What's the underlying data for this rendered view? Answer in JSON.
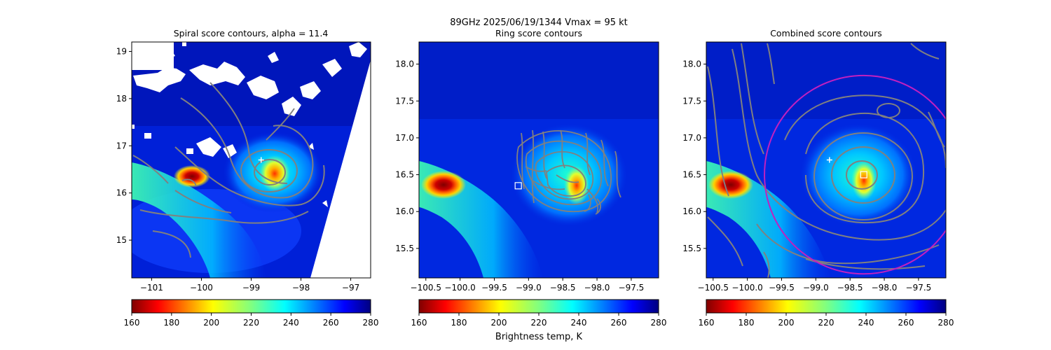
{
  "suptitle": "89GHz  2025/06/19/1344    Vmax = 95 kt",
  "colorbar_label": "Brightness temp, K",
  "colors": {
    "contour": "#808080",
    "circle": "#c020c0",
    "marker": "#ffffff"
  },
  "colormap": "jet_reversed",
  "chart_data": [
    {
      "type": "heatmap",
      "title": "Spiral score contours, alpha = 11.4",
      "xlim": [
        -101.4,
        -96.6
      ],
      "ylim": [
        14.2,
        19.2
      ],
      "xticks": [
        -101,
        -100,
        -99,
        -98,
        -97
      ],
      "xtick_labels": [
        "−101",
        "−100",
        "−99",
        "−98",
        "−97"
      ],
      "yticks": [
        15,
        16,
        17,
        18,
        19
      ],
      "ytick_labels": [
        "15",
        "16",
        "17",
        "18",
        "19"
      ],
      "swath_edge": [
        [
          -97.55,
          14.2
        ],
        [
          -96.6,
          18.95
        ]
      ],
      "missing_data": "white gaps in upper-left",
      "cold_cores": [
        {
          "x": -100.1,
          "y": 16.35,
          "tb": 165
        },
        {
          "x": -98.25,
          "y": 16.5,
          "tb": 185
        }
      ],
      "marker": {
        "type": "plus",
        "x": -98.8,
        "y": 16.7
      },
      "colorbar": {
        "min": 160,
        "max": 280,
        "ticks": [
          160,
          180,
          200,
          220,
          240,
          260,
          280
        ]
      }
    },
    {
      "type": "heatmap",
      "title": "Ring score contours",
      "xlim": [
        -100.6,
        -97.1
      ],
      "ylim": [
        15.1,
        18.3
      ],
      "xticks": [
        -100.5,
        -100.0,
        -99.5,
        -99.0,
        -98.5,
        -98.0,
        -97.5
      ],
      "xtick_labels": [
        "−100.5",
        "−100.0",
        "−99.5",
        "−99.0",
        "−98.5",
        "−98.0",
        "−97.5"
      ],
      "yticks": [
        15.5,
        16.0,
        16.5,
        17.0,
        17.5,
        18.0
      ],
      "ytick_labels": [
        "15.5",
        "16.0",
        "16.5",
        "17.0",
        "17.5",
        "18.0"
      ],
      "cold_cores": [
        {
          "x": -100.2,
          "y": 16.35,
          "tb": 165
        },
        {
          "x": -98.3,
          "y": 16.35,
          "tb": 190
        }
      ],
      "marker": {
        "type": "square",
        "x": -99.15,
        "y": 16.35
      },
      "colorbar": {
        "min": 160,
        "max": 280,
        "ticks": [
          160,
          180,
          200,
          220,
          240,
          260,
          280
        ]
      }
    },
    {
      "type": "heatmap",
      "title": "Combined score contours",
      "xlim": [
        -100.6,
        -97.1
      ],
      "ylim": [
        15.1,
        18.3
      ],
      "xticks": [
        -100.5,
        -100.0,
        -99.5,
        -99.0,
        -98.5,
        -98.0,
        -97.5
      ],
      "xtick_labels": [
        "−100.5",
        "−100.0",
        "−99.5",
        "−99.0",
        "−98.5",
        "−98.0",
        "−97.5"
      ],
      "yticks": [
        15.5,
        16.0,
        16.5,
        17.0,
        17.5,
        18.0
      ],
      "ytick_labels": [
        "15.5",
        "16.0",
        "16.5",
        "17.0",
        "17.5",
        "18.0"
      ],
      "cold_cores": [
        {
          "x": -100.2,
          "y": 16.35,
          "tb": 165
        },
        {
          "x": -98.3,
          "y": 16.45,
          "tb": 185
        }
      ],
      "markers": [
        {
          "type": "plus",
          "x": -98.8,
          "y": 16.7
        },
        {
          "type": "square",
          "x": -98.3,
          "y": 16.5
        }
      ],
      "circle": {
        "x": -98.3,
        "y": 16.5,
        "radius_deg": 1.45
      },
      "colorbar": {
        "min": 160,
        "max": 280,
        "ticks": [
          160,
          180,
          200,
          220,
          240,
          260,
          280
        ]
      }
    }
  ]
}
